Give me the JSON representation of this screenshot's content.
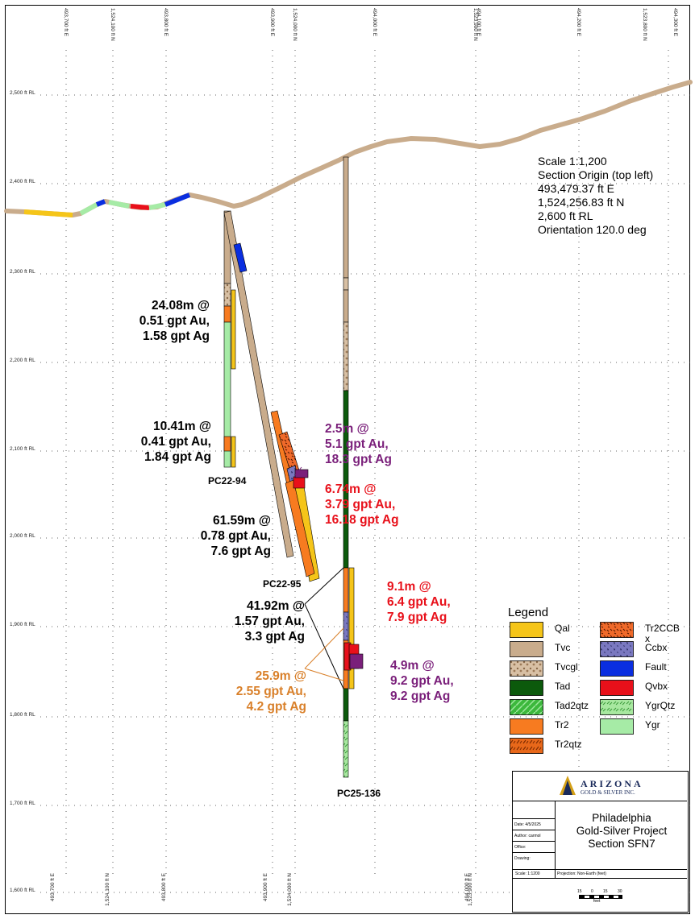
{
  "grid": {
    "top_labels": [
      "493,700 ft E",
      "1,524,100 ft N",
      "493,800 ft E",
      "493,900 ft E",
      "1,524,000 ft N",
      "494,000 ft E",
      "1,523,900 ft N",
      "494,100 ft E",
      "494,200 ft E",
      "1,523,800 ft N",
      "494,300 ft E"
    ],
    "bottom_labels": [
      "493,700 ft E",
      "1,524,100 ft N",
      "493,800 ft E",
      "493,900 ft E",
      "1,524,000 ft N",
      "494,000 ft E",
      "1,523,900 ft N"
    ],
    "elevation_labels": [
      "2,500 ft RL",
      "2,400 ft RL",
      "2,300 ft RL",
      "2,200 ft RL",
      "2,100 ft RL",
      "2,000 ft RL",
      "1,900 ft RL",
      "1,800 ft RL",
      "1,700 ft RL",
      "1,600 ft RL"
    ]
  },
  "info": {
    "scale": "Scale 1:1,200",
    "origin_label": "Section Origin (top left)",
    "easting": "493,479.37 ft E",
    "northing": "1,524,256.83 ft N",
    "rl": "2,600 ft RL",
    "orientation": "Orientation 120.0 deg"
  },
  "holes": {
    "h94": "PC22-94",
    "h95": "PC22-95",
    "h136": "PC25-136"
  },
  "intercepts": [
    {
      "lines": [
        "24.08m @",
        "0.51 gpt Au,",
        "1.58 gpt Ag"
      ],
      "color": "#000000"
    },
    {
      "lines": [
        "10.41m @",
        "0.41 gpt Au,",
        "1.84 gpt Ag"
      ],
      "color": "#000000"
    },
    {
      "lines": [
        "2.5m @",
        "5.1 gpt Au,",
        "18.3 gpt Ag"
      ],
      "color": "#7a1f7a"
    },
    {
      "lines": [
        "6.74m @",
        "3.79 gpt Au,",
        "16.18 gpt Ag"
      ],
      "color": "#e8101a"
    },
    {
      "lines": [
        "61.59m @",
        "0.78 gpt Au,",
        "7.6 gpt Ag"
      ],
      "color": "#000000"
    },
    {
      "lines": [
        "9.1m @",
        "6.4 gpt Au,",
        "7.9 gpt Ag"
      ],
      "color": "#e8101a"
    },
    {
      "lines": [
        "41.92m @",
        "1.57 gpt Au,",
        "3.3 gpt Ag"
      ],
      "color": "#000000"
    },
    {
      "lines": [
        "25.9m @",
        "2.55 gpt Au,",
        "4.2 gpt Ag"
      ],
      "color": "#d9802a"
    },
    {
      "lines": [
        "4.9m @",
        "9.2 gpt Au,",
        "9.2 gpt Ag"
      ],
      "color": "#7a1f7a"
    }
  ],
  "legend": {
    "title": "Legend",
    "items": [
      {
        "label": "Qal",
        "color": "#f5c519"
      },
      {
        "label": "Tvc",
        "color": "#c9ac8c"
      },
      {
        "label": "Tvcgl",
        "color": "#d8c0a4"
      },
      {
        "label": "Tad",
        "color": "#0c5a0c"
      },
      {
        "label": "Tad2qtz",
        "color": "#3cb83c"
      },
      {
        "label": "Tr2",
        "color": "#f77b20"
      },
      {
        "label": "Tr2qtz",
        "color": "#e8681a"
      },
      {
        "label": "Tr2CCB\nx",
        "color": "#f06a2a"
      },
      {
        "label": "Ccbx",
        "color": "#7a78c0"
      },
      {
        "label": "Fault",
        "color": "#0a2ee0"
      },
      {
        "label": "Qvbx",
        "color": "#e8101a"
      },
      {
        "label": "YgrQtz",
        "color": "#a8e8a0"
      },
      {
        "label": "Ygr",
        "color": "#a6eba6"
      }
    ]
  },
  "title_block": {
    "company_main": "ARIZONA",
    "company_sub": "GOLD & SILVER INC.",
    "project_line1": "Philadelphia",
    "project_line2": "Gold-Silver Project",
    "project_line3": "Section SFN7",
    "date": "Date: 4/5/2025",
    "author": "Author: carmol",
    "office": "Office:",
    "drawing": "Drawing:",
    "scale_small": "Scale: 1:1200",
    "projection": "Projection: Non-Earth (feet)",
    "scalebar_ticks": [
      "15",
      "0",
      "15",
      "30"
    ],
    "scalebar_unit": "feet"
  }
}
